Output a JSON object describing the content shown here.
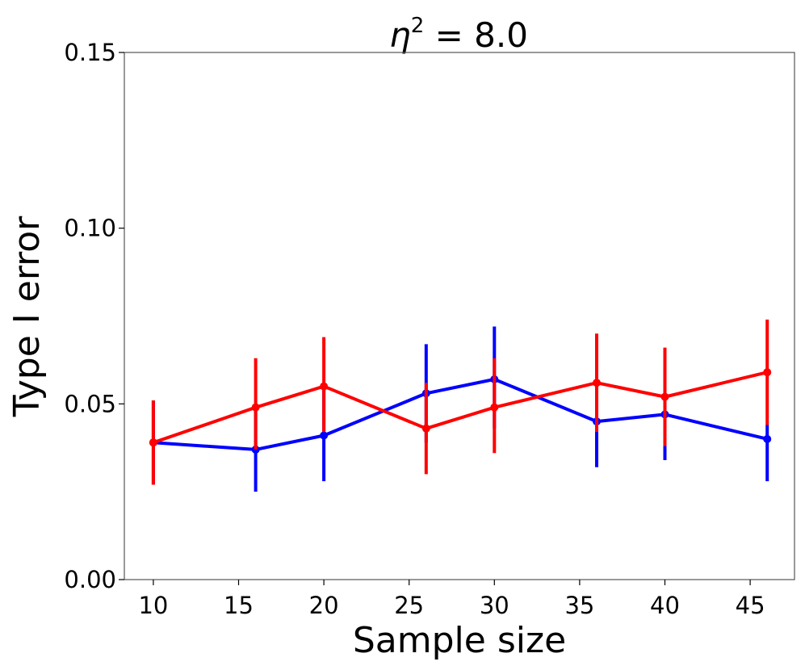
{
  "chart_data": {
    "type": "line",
    "title": "η² = 8.0",
    "title_parts": {
      "symbol": "η",
      "exponent": "2",
      "rest": " = 8.0"
    },
    "xlabel": "Sample size",
    "ylabel": "Type I error",
    "xlim": [
      8.3,
      47.6
    ],
    "ylim": [
      0.0,
      0.15
    ],
    "xticks": [
      10,
      15,
      20,
      25,
      30,
      35,
      40,
      45
    ],
    "xtick_labels": [
      "10",
      "15",
      "20",
      "25",
      "30",
      "35",
      "40",
      "45"
    ],
    "yticks": [
      0.0,
      0.05,
      0.1,
      0.15
    ],
    "ytick_labels": [
      "0.00",
      "0.05",
      "0.10",
      "0.15"
    ],
    "grid": false,
    "series": [
      {
        "name": "blue",
        "color": "#0000ff",
        "x": [
          10,
          16,
          20,
          26,
          30,
          36,
          40,
          46
        ],
        "y": [
          0.039,
          0.037,
          0.041,
          0.053,
          0.057,
          0.045,
          0.047,
          0.04
        ],
        "err_low": [
          0.027,
          0.025,
          0.028,
          0.039,
          0.043,
          0.032,
          0.034,
          0.028
        ],
        "err_high": [
          0.051,
          0.049,
          0.055,
          0.067,
          0.072,
          0.058,
          0.06,
          0.044
        ]
      },
      {
        "name": "red",
        "color": "#ff0000",
        "x": [
          10,
          16,
          20,
          26,
          30,
          36,
          40,
          46
        ],
        "y": [
          0.039,
          0.049,
          0.055,
          0.043,
          0.049,
          0.056,
          0.052,
          0.059
        ],
        "err_low": [
          0.027,
          0.037,
          0.042,
          0.03,
          0.036,
          0.042,
          0.038,
          0.044
        ],
        "err_high": [
          0.051,
          0.063,
          0.069,
          0.056,
          0.063,
          0.07,
          0.066,
          0.074
        ]
      }
    ]
  }
}
